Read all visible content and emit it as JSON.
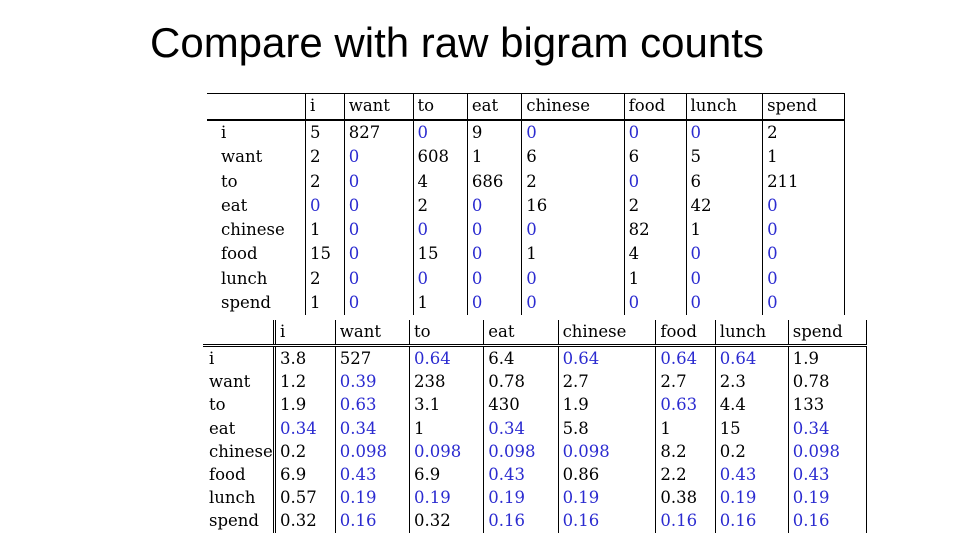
{
  "slide": {
    "title": "Compare with raw bigram counts"
  },
  "colors": {
    "zero_value": "#2b2bd0",
    "text": "#000000"
  },
  "raw_counts": {
    "columns": [
      "i",
      "want",
      "to",
      "eat",
      "chinese",
      "food",
      "lunch",
      "spend"
    ],
    "rows": [
      {
        "label": "i",
        "values": [
          "5",
          "827",
          "0",
          "9",
          "0",
          "0",
          "0",
          "2"
        ]
      },
      {
        "label": "want",
        "values": [
          "2",
          "0",
          "608",
          "1",
          "6",
          "6",
          "5",
          "1"
        ]
      },
      {
        "label": "to",
        "values": [
          "2",
          "0",
          "4",
          "686",
          "2",
          "0",
          "6",
          "211"
        ]
      },
      {
        "label": "eat",
        "values": [
          "0",
          "0",
          "2",
          "0",
          "16",
          "2",
          "42",
          "0"
        ]
      },
      {
        "label": "chinese",
        "values": [
          "1",
          "0",
          "0",
          "0",
          "0",
          "82",
          "1",
          "0"
        ]
      },
      {
        "label": "food",
        "values": [
          "15",
          "0",
          "15",
          "0",
          "1",
          "4",
          "0",
          "0"
        ]
      },
      {
        "label": "lunch",
        "values": [
          "2",
          "0",
          "0",
          "0",
          "0",
          "1",
          "0",
          "0"
        ]
      },
      {
        "label": "spend",
        "values": [
          "1",
          "0",
          "1",
          "0",
          "0",
          "0",
          "0",
          "0"
        ]
      }
    ]
  },
  "reconstituted_counts": {
    "columns": [
      "i",
      "want",
      "to",
      "eat",
      "chinese",
      "food",
      "lunch",
      "spend"
    ],
    "rows": [
      {
        "label": "i",
        "values": [
          "3.8",
          "527",
          "0.64",
          "6.4",
          "0.64",
          "0.64",
          "0.64",
          "1.9"
        ]
      },
      {
        "label": "want",
        "values": [
          "1.2",
          "0.39",
          "238",
          "0.78",
          "2.7",
          "2.7",
          "2.3",
          "0.78"
        ]
      },
      {
        "label": "to",
        "values": [
          "1.9",
          "0.63",
          "3.1",
          "430",
          "1.9",
          "0.63",
          "4.4",
          "133"
        ]
      },
      {
        "label": "eat",
        "values": [
          "0.34",
          "0.34",
          "1",
          "0.34",
          "5.8",
          "1",
          "15",
          "0.34"
        ]
      },
      {
        "label": "chinese",
        "values": [
          "0.2",
          "0.098",
          "0.098",
          "0.098",
          "0.098",
          "8.2",
          "0.2",
          "0.098"
        ]
      },
      {
        "label": "food",
        "values": [
          "6.9",
          "0.43",
          "6.9",
          "0.43",
          "0.86",
          "2.2",
          "0.43",
          "0.43"
        ]
      },
      {
        "label": "lunch",
        "values": [
          "0.57",
          "0.19",
          "0.19",
          "0.19",
          "0.19",
          "0.38",
          "0.19",
          "0.19"
        ]
      },
      {
        "label": "spend",
        "values": [
          "0.32",
          "0.16",
          "0.32",
          "0.16",
          "0.16",
          "0.16",
          "0.16",
          "0.16"
        ]
      }
    ]
  }
}
